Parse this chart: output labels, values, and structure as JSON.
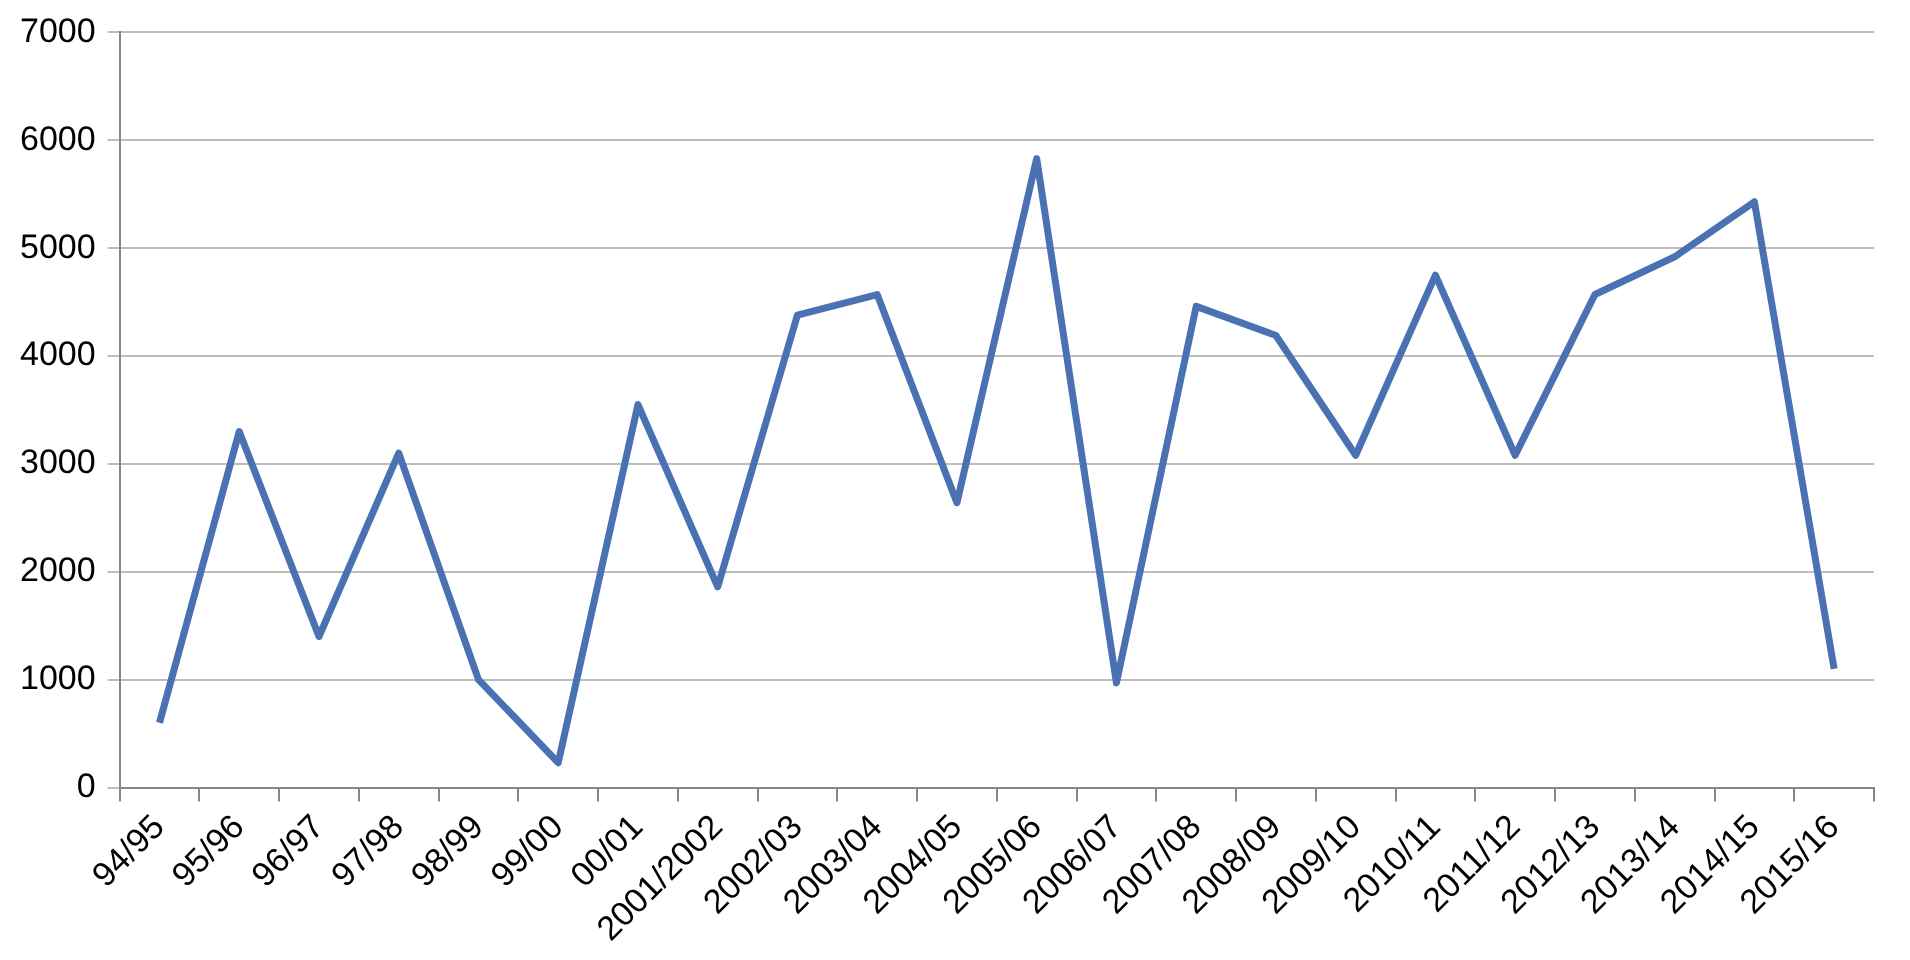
{
  "chart_data": {
    "type": "line",
    "categories": [
      "94/95",
      "95/96",
      "96/97",
      "97/98",
      "98/99",
      "99/00",
      "00/01",
      "2001/2002",
      "2002/03",
      "2003/04",
      "2004/05",
      "2005/06",
      "2006/07",
      "2007/08",
      "2008/09",
      "2009/10",
      "2010/11",
      "2011/12",
      "2012/13",
      "2013/14",
      "2014/15",
      "2015/16"
    ],
    "series": [
      {
        "color": "#4a72b2",
        "values": [
          600,
          3300,
          1400,
          3100,
          1000,
          230,
          3550,
          1860,
          4380,
          4570,
          2640,
          5830,
          970,
          4460,
          4190,
          3080,
          4750,
          3080,
          4570,
          4920,
          5430,
          1100
        ]
      }
    ],
    "ylim": [
      0,
      7000
    ],
    "yticks": [
      0,
      1000,
      2000,
      3000,
      4000,
      5000,
      6000,
      7000
    ],
    "grid": "y",
    "legend": false,
    "marker": "none",
    "line_style": "solid"
  }
}
